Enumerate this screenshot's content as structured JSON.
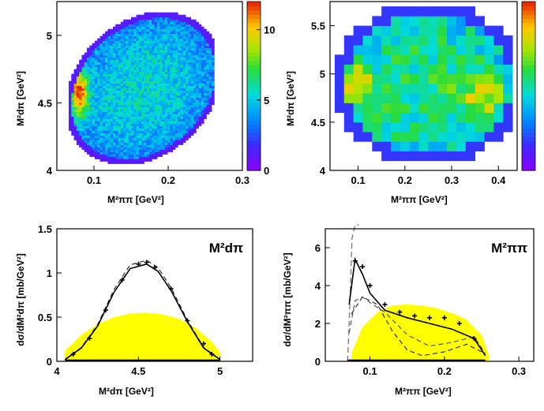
{
  "chart_data": [
    {
      "type": "heatmap",
      "xlabel": "M²ππ [GeV²]",
      "ylabel": "M²dπ [GeV²]",
      "xlim": [
        0.05,
        0.3
      ],
      "ylim": [
        4.0,
        5.25
      ],
      "xticks": [
        "0.1",
        "0.2",
        "0.3"
      ],
      "yticks": [
        "4",
        "4.5",
        "5"
      ],
      "colorbar": {
        "min": 0,
        "max": 12,
        "ticks": [
          "0",
          "5",
          "10"
        ]
      },
      "density": {
        "hot_x": 0.08,
        "hot_y": 4.58,
        "peak": 12,
        "background": 3
      }
    },
    {
      "type": "heatmap",
      "xlabel": "M²ππ [GeV²]",
      "ylabel": "M²dπ [GeV²]",
      "xlim": [
        0.04,
        0.44
      ],
      "ylim": [
        4.0,
        5.75
      ],
      "xticks": [
        "0.1",
        "0.2",
        "0.3",
        "0.4"
      ],
      "yticks": [
        "4",
        "4.5",
        "5",
        "5.5"
      ],
      "colorbar": {
        "min": 0,
        "max": 3.5,
        "ticks": [
          "0",
          "1",
          "2",
          "3"
        ]
      },
      "density": {
        "hot_x": 0.08,
        "hot_y": 4.8,
        "second_x": 0.36,
        "second_y": 4.7,
        "peak": 3
      }
    },
    {
      "type": "line",
      "title": "M²dπ",
      "xlabel": "M²dπ [GeV²]",
      "ylabel": "dσ/dM²dπ [mb/GeV²]",
      "xlim": [
        4.0,
        5.2
      ],
      "ylim": [
        0,
        1.5
      ],
      "xticks": [
        "4",
        "4.5",
        "5"
      ],
      "yticks": [
        "0",
        "0.5",
        "1",
        "1.5"
      ],
      "phase_space": {
        "x": [
          4.05,
          4.15,
          4.25,
          4.35,
          4.45,
          4.55,
          4.65,
          4.75,
          4.85,
          4.95,
          5.0
        ],
        "y": [
          0.12,
          0.3,
          0.42,
          0.5,
          0.54,
          0.55,
          0.53,
          0.48,
          0.38,
          0.22,
          0.1
        ]
      },
      "series": [
        {
          "x": [
            4.05,
            4.15,
            4.25,
            4.35,
            4.45,
            4.55,
            4.62,
            4.7,
            4.8,
            4.9,
            5.0
          ],
          "y": [
            0.02,
            0.15,
            0.4,
            0.78,
            1.05,
            1.1,
            1.02,
            0.8,
            0.45,
            0.15,
            0.02
          ]
        }
      ],
      "data": {
        "x": [
          4.1,
          4.2,
          4.3,
          4.4,
          4.5,
          4.55,
          4.6,
          4.7,
          4.8,
          4.9,
          4.95
        ],
        "y": [
          0.08,
          0.26,
          0.58,
          0.92,
          1.1,
          1.12,
          1.06,
          0.82,
          0.46,
          0.2,
          0.08
        ]
      }
    },
    {
      "type": "line",
      "title": "M²ππ",
      "xlabel": "M²ππ [GeV²]",
      "ylabel": "dσ/dM²ππ [mb/GeV²]",
      "xlim": [
        0.04,
        0.32
      ],
      "ylim": [
        0,
        7
      ],
      "xticks": [
        "0.1",
        "0.2",
        "0.3"
      ],
      "yticks": [
        "0",
        "2",
        "4",
        "6"
      ],
      "phase_space": {
        "x": [
          0.075,
          0.09,
          0.11,
          0.13,
          0.15,
          0.17,
          0.19,
          0.21,
          0.23,
          0.25,
          0.26
        ],
        "y": [
          0.4,
          1.8,
          2.6,
          2.95,
          3.0,
          2.95,
          2.8,
          2.55,
          2.2,
          1.4,
          0.3
        ]
      },
      "series": [
        {
          "x": [
            0.072,
            0.08,
            0.09,
            0.1,
            0.12,
            0.15,
            0.18,
            0.21,
            0.24,
            0.255
          ],
          "y": [
            3.0,
            5.4,
            4.6,
            3.6,
            2.7,
            2.3,
            2.0,
            1.7,
            1.2,
            0.3
          ]
        }
      ],
      "data": {
        "x": [
          0.08,
          0.09,
          0.1,
          0.12,
          0.14,
          0.16,
          0.18,
          0.2,
          0.22,
          0.24
        ],
        "y": [
          5.3,
          5.0,
          4.0,
          3.0,
          2.6,
          2.4,
          2.3,
          2.3,
          2.0,
          1.2
        ]
      }
    }
  ]
}
